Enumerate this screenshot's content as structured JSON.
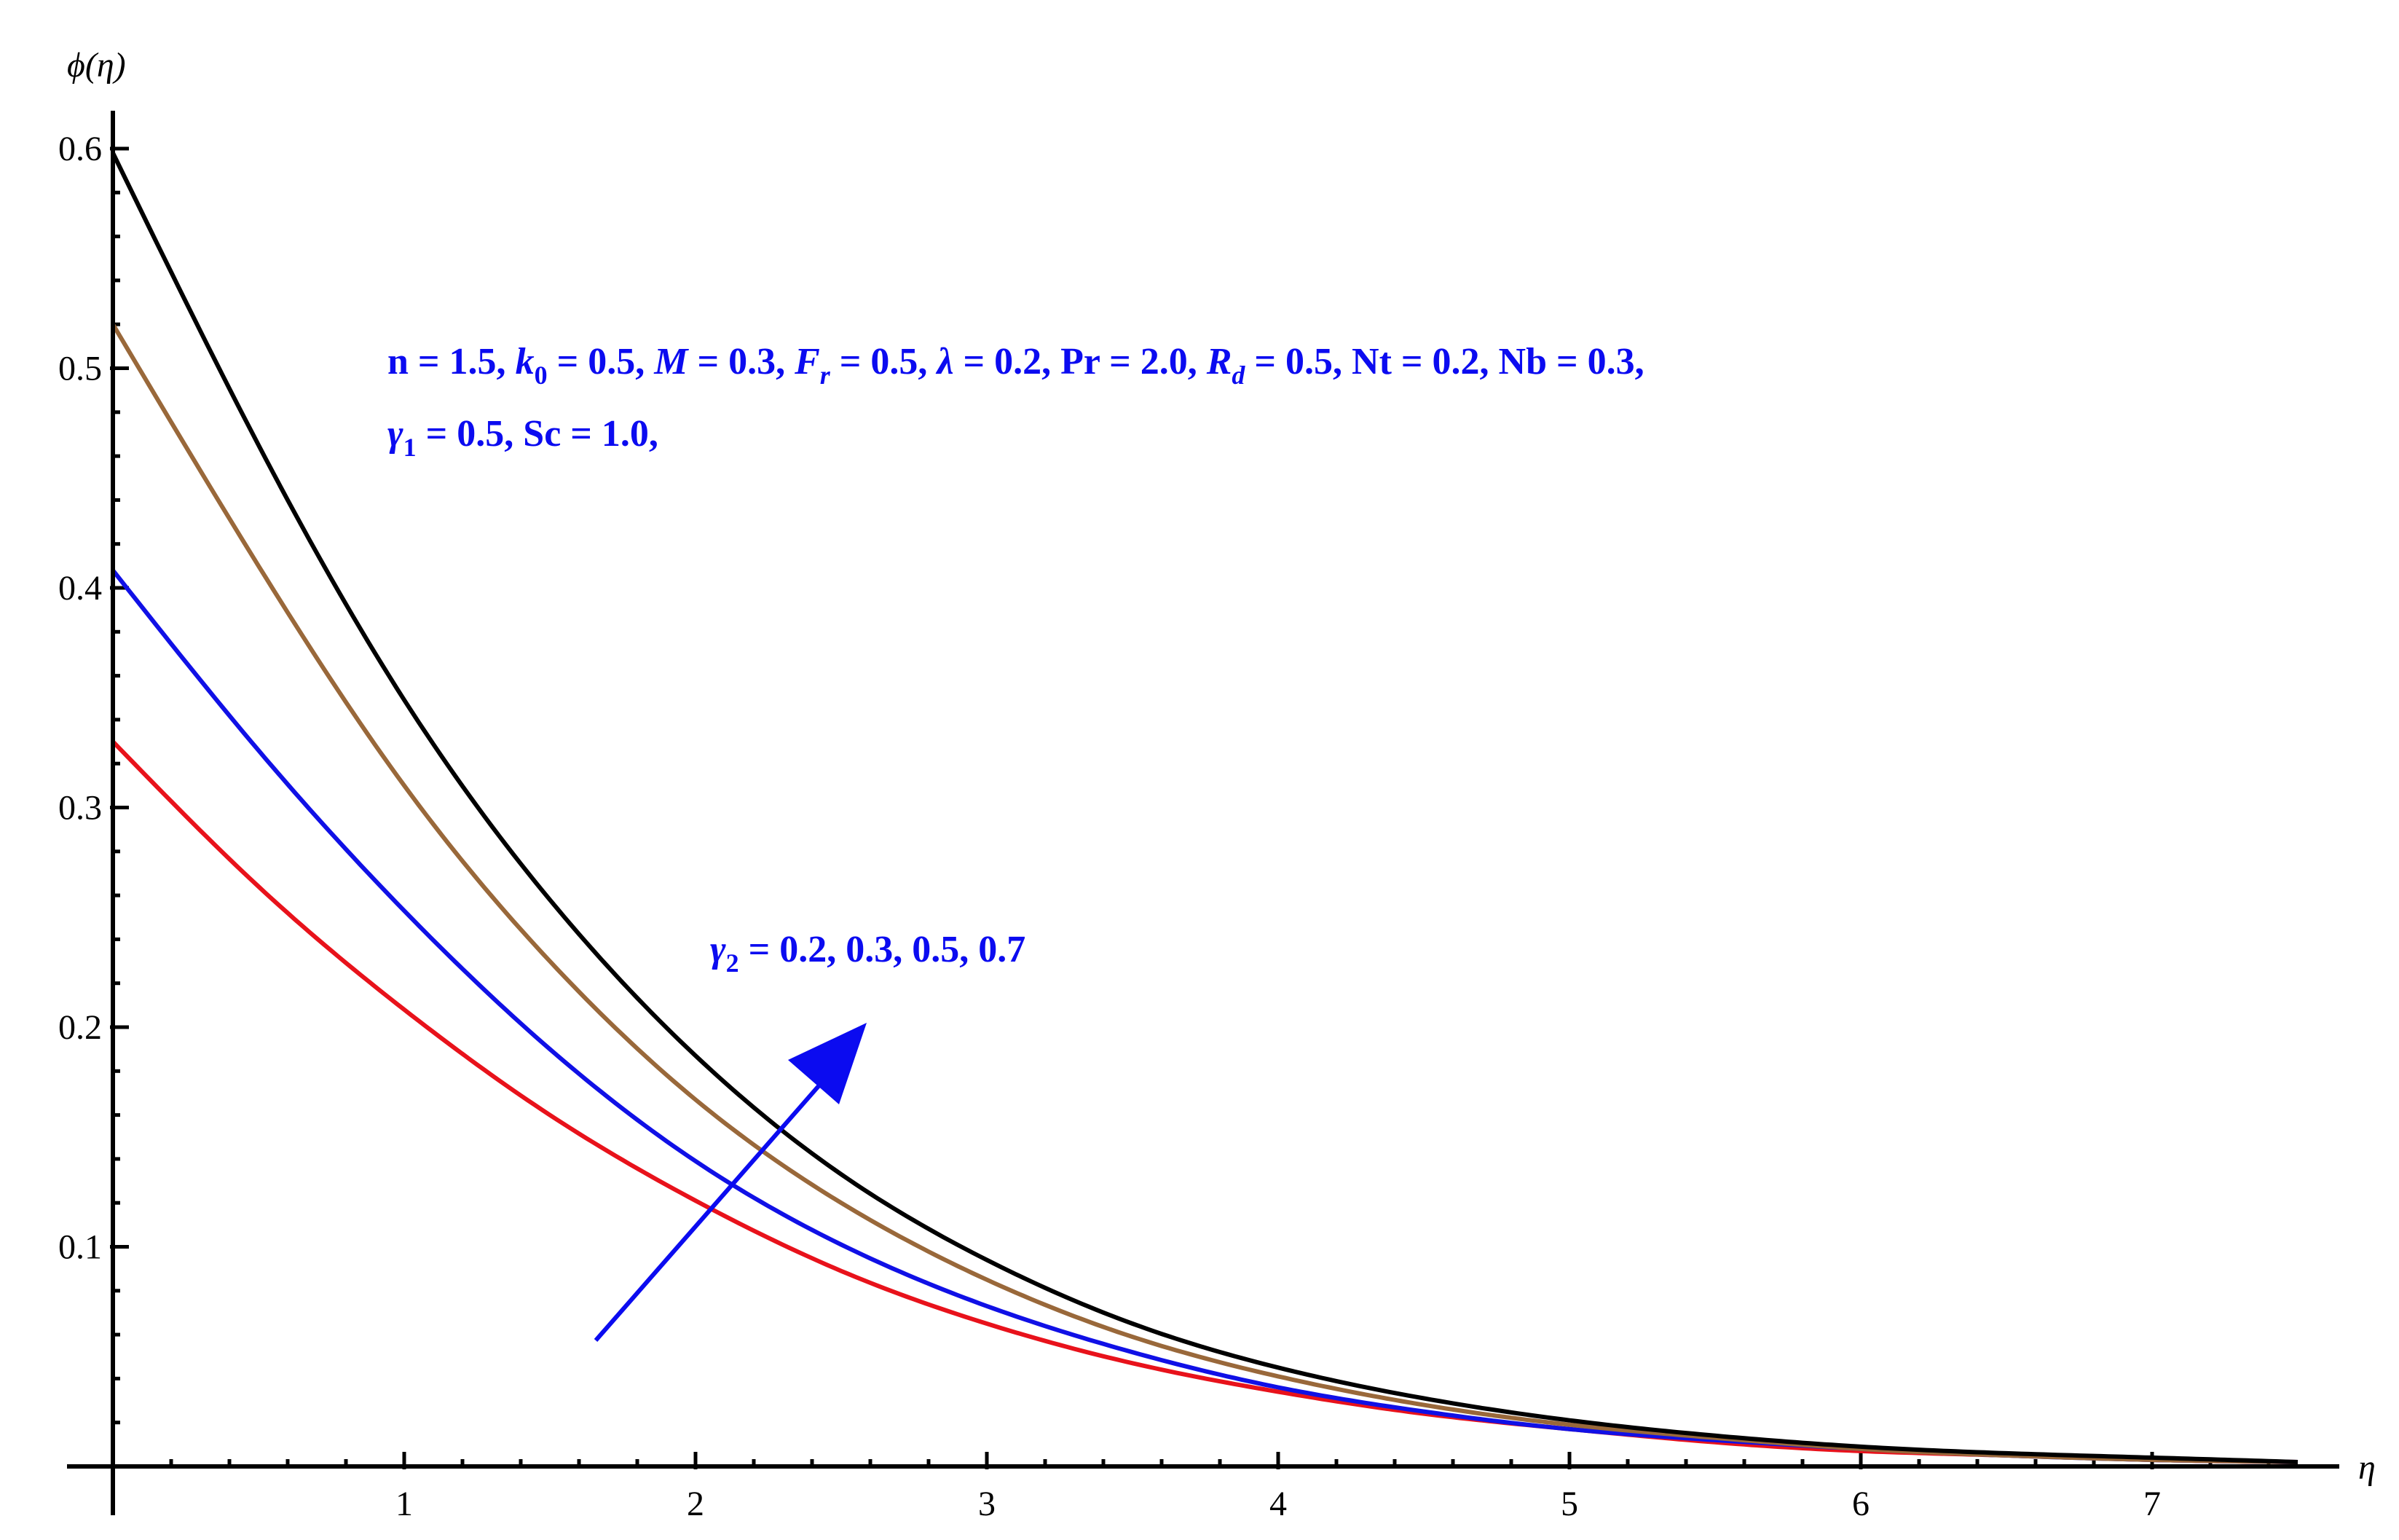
{
  "chart_data": {
    "type": "line",
    "xlabel": "η",
    "ylabel": "ϕ(η)",
    "xlim": [
      0,
      7.5
    ],
    "ylim": [
      0,
      0.62
    ],
    "x_ticks": [
      1,
      2,
      3,
      4,
      5,
      6,
      7
    ],
    "y_ticks": [
      0.1,
      0.2,
      0.3,
      0.4,
      0.5,
      0.6
    ],
    "x_tick_labels": [
      "1",
      "2",
      "3",
      "4",
      "5",
      "6",
      "7"
    ],
    "y_tick_labels": [
      "0.1",
      "0.2",
      "0.3",
      "0.4",
      "0.5",
      "0.6"
    ],
    "grid": false,
    "series": [
      {
        "color": "#e8121b",
        "x": [
          0,
          0.5,
          1,
          1.5,
          2,
          2.5,
          3,
          3.5,
          4,
          4.5,
          5,
          5.5,
          6,
          6.5,
          7,
          7.5
        ],
        "y": [
          0.33,
          0.264,
          0.208,
          0.16,
          0.121,
          0.089,
          0.065,
          0.047,
          0.034,
          0.024,
          0.017,
          0.011,
          0.007,
          0.005,
          0.003,
          0.002
        ]
      },
      {
        "color": "#1010e6",
        "x": [
          0,
          0.5,
          1,
          1.5,
          2,
          2.5,
          3,
          3.5,
          4,
          4.5,
          5,
          5.5,
          6,
          6.5,
          7,
          7.5
        ],
        "y": [
          0.408,
          0.326,
          0.253,
          0.19,
          0.139,
          0.101,
          0.073,
          0.052,
          0.036,
          0.025,
          0.017,
          0.012,
          0.008,
          0.005,
          0.003,
          0.002
        ]
      },
      {
        "color": "#99683a",
        "x": [
          0,
          0.5,
          1,
          1.5,
          2,
          2.5,
          3,
          3.5,
          4,
          4.5,
          5,
          5.5,
          6,
          6.5,
          7,
          7.5
        ],
        "y": [
          0.52,
          0.41,
          0.31,
          0.23,
          0.167,
          0.12,
          0.085,
          0.059,
          0.041,
          0.028,
          0.019,
          0.013,
          0.008,
          0.005,
          0.003,
          0.002
        ]
      },
      {
        "color": "#000000",
        "x": [
          0,
          0.5,
          1,
          1.5,
          2,
          2.5,
          3,
          3.5,
          4,
          4.5,
          5,
          5.5,
          6,
          6.5,
          7,
          7.5
        ],
        "y": [
          0.598,
          0.465,
          0.349,
          0.258,
          0.187,
          0.133,
          0.094,
          0.065,
          0.045,
          0.031,
          0.021,
          0.014,
          0.009,
          0.006,
          0.004,
          0.002
        ]
      }
    ],
    "annotations": {
      "params_line1": {
        "p1": "n = 1.5, ",
        "k": "k",
        "k_sub": "0",
        "p2": " = 0.5, ",
        "M": "M",
        "p3": " = 0.3, ",
        "F": "F",
        "F_sub": "r",
        "p4": " =  0.5, ",
        "lam": "λ",
        "p5": " = 0.2, Pr = 2.0, ",
        "R": "R",
        "R_sub": "d",
        "p6": " = 0.5, Nt = 0.2, Nb = 0.3,"
      },
      "params_line2": {
        "g": "γ",
        "g_sub": "1",
        "p1": " = 0.5, Sc = 1.0,"
      },
      "gamma2_label": {
        "g": "γ",
        "g_sub": "2",
        "p1": " = 0.2, 0.3, 0.5, 0.7"
      },
      "arrow_color": "#0b0bf0"
    }
  }
}
